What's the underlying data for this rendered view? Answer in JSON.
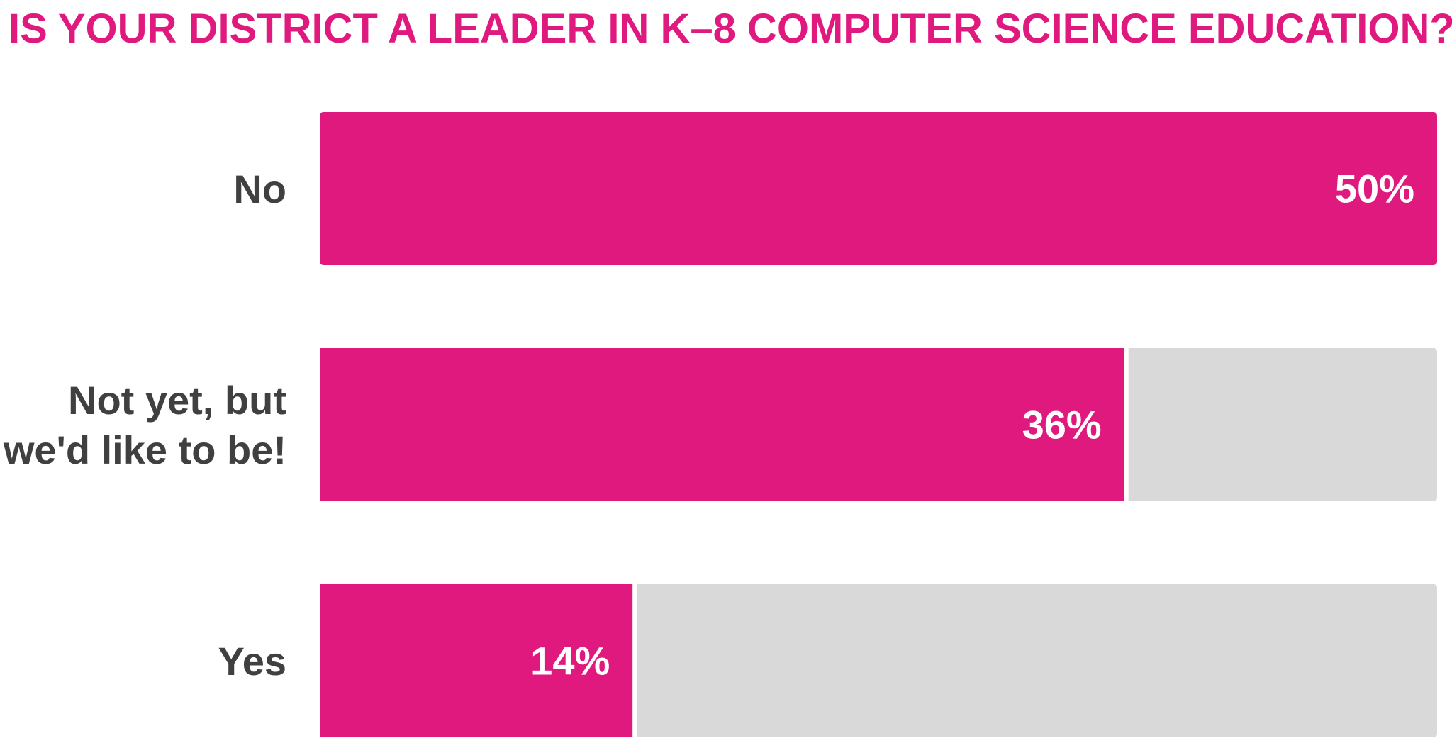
{
  "chart_data": {
    "type": "bar",
    "orientation": "horizontal",
    "title": "IS YOUR DISTRICT A LEADER IN K–8 COMPUTER SCIENCE EDUCATION?",
    "categories": [
      [
        "No"
      ],
      [
        "Not yet, but",
        "we'd like to be!"
      ],
      [
        "Yes"
      ]
    ],
    "values": [
      50,
      36,
      14
    ],
    "value_labels": [
      "50%",
      "36%",
      "14%"
    ],
    "xlim": [
      0,
      50
    ],
    "grid": false,
    "legend": "none",
    "colors": {
      "bar": "#e0197f",
      "track": "#d9d9d9",
      "title": "#e0197f",
      "category_text": "#404040",
      "value_text": "#ffffff"
    }
  }
}
